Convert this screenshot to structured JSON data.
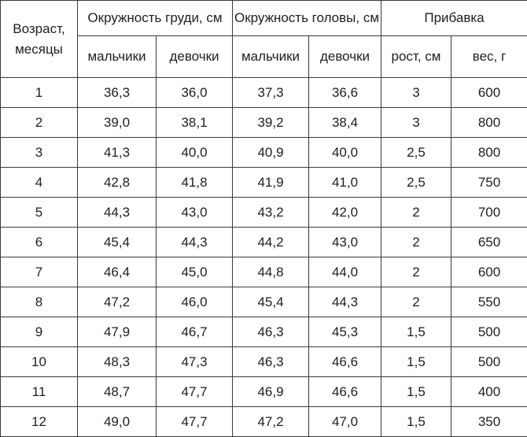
{
  "headers": {
    "age": "Возраст, месяцы",
    "chest": "Окружность груди, см",
    "head": "Окружность головы, см",
    "gain": "Прибавка",
    "boys": "мальчики",
    "girls": "девочки",
    "height": "рост, см",
    "weight": "вес, г"
  },
  "rows": [
    {
      "age": "1",
      "chest_boys": "36,3",
      "chest_girls": "36,0",
      "head_boys": "37,3",
      "head_girls": "36,6",
      "height": "3",
      "weight": "600"
    },
    {
      "age": "2",
      "chest_boys": "39,0",
      "chest_girls": "38,1",
      "head_boys": "39,2",
      "head_girls": "38,4",
      "height": "3",
      "weight": "800"
    },
    {
      "age": "3",
      "chest_boys": "41,3",
      "chest_girls": "40,0",
      "head_boys": "40,9",
      "head_girls": "40,0",
      "height": "2,5",
      "weight": "800"
    },
    {
      "age": "4",
      "chest_boys": "42,8",
      "chest_girls": "41,8",
      "head_boys": "41,9",
      "head_girls": "41,0",
      "height": "2,5",
      "weight": "750"
    },
    {
      "age": "5",
      "chest_boys": "44,3",
      "chest_girls": "43,0",
      "head_boys": "43,2",
      "head_girls": "42,0",
      "height": "2",
      "weight": "700"
    },
    {
      "age": "6",
      "chest_boys": "45,4",
      "chest_girls": "44,3",
      "head_boys": "44,2",
      "head_girls": "43,0",
      "height": "2",
      "weight": "650"
    },
    {
      "age": "7",
      "chest_boys": "46,4",
      "chest_girls": "45,0",
      "head_boys": "44,8",
      "head_girls": "44,0",
      "height": "2",
      "weight": "600"
    },
    {
      "age": "8",
      "chest_boys": "47,2",
      "chest_girls": "46,0",
      "head_boys": "45,4",
      "head_girls": "44,3",
      "height": "2",
      "weight": "550"
    },
    {
      "age": "9",
      "chest_boys": "47,9",
      "chest_girls": "46,7",
      "head_boys": "46,3",
      "head_girls": "45,3",
      "height": "1,5",
      "weight": "500"
    },
    {
      "age": "10",
      "chest_boys": "48,3",
      "chest_girls": "47,3",
      "head_boys": "46,3",
      "head_girls": "46,6",
      "height": "1,5",
      "weight": "500"
    },
    {
      "age": "11",
      "chest_boys": "48,7",
      "chest_girls": "47,7",
      "head_boys": "46,9",
      "head_girls": "46,6",
      "height": "1,5",
      "weight": "400"
    },
    {
      "age": "12",
      "chest_boys": "49,0",
      "chest_girls": "47,7",
      "head_boys": "47,2",
      "head_girls": "47,0",
      "height": "1,5",
      "weight": "350"
    }
  ]
}
